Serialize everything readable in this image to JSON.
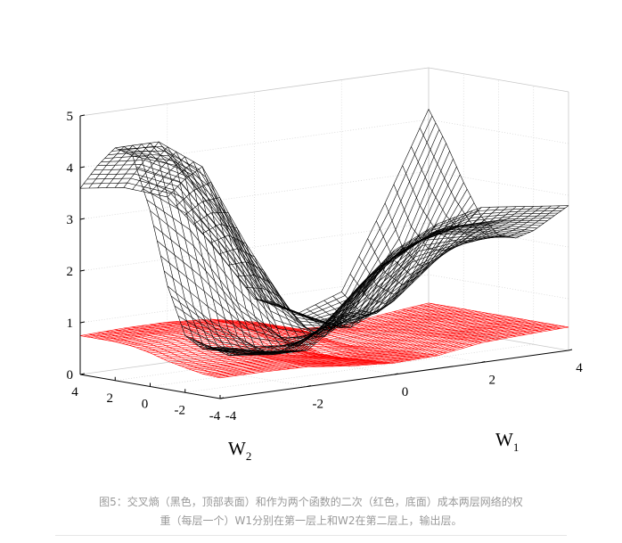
{
  "chart_data": {
    "type": "surface",
    "title": "",
    "xlabel": "W",
    "xlabel_sub": "1",
    "ylabel": "W",
    "ylabel_sub": "2",
    "zlabel": "",
    "xlim": [
      -4,
      4
    ],
    "ylim": [
      -4,
      4
    ],
    "zlim": [
      0,
      5
    ],
    "x_ticks": [
      "-4",
      "-2",
      "0",
      "2",
      "4"
    ],
    "y_ticks": [
      "4",
      "2",
      "0",
      "-2",
      "-4"
    ],
    "z_ticks": [
      "0",
      "1",
      "2",
      "3",
      "4",
      "5"
    ],
    "grid": true,
    "series": [
      {
        "color": "#000000",
        "style": "wireframe",
        "w1": [
          -4,
          -3,
          -2,
          -1,
          0,
          1,
          2,
          3,
          4
        ],
        "w2": [
          -4,
          -3,
          -2,
          -1,
          0,
          1,
          2,
          3,
          4
        ],
        "z": [
          [
            1.0,
            0.8,
            0.7,
            1.3,
            2.4,
            2.8,
            3.0,
            2.9,
            2.8
          ],
          [
            0.9,
            0.7,
            0.6,
            1.1,
            2.0,
            2.4,
            2.6,
            2.6,
            2.5
          ],
          [
            1.1,
            0.6,
            0.5,
            0.8,
            1.6,
            2.2,
            2.5,
            2.4,
            2.2
          ],
          [
            2.0,
            1.2,
            0.6,
            0.5,
            1.0,
            1.8,
            2.3,
            2.2,
            2.0
          ],
          [
            3.4,
            2.6,
            1.4,
            0.6,
            0.5,
            1.0,
            1.7,
            1.9,
            2.0
          ],
          [
            4.4,
            4.1,
            3.0,
            1.4,
            0.6,
            0.5,
            0.9,
            1.6,
            2.3
          ],
          [
            4.5,
            4.5,
            3.9,
            2.3,
            0.9,
            0.5,
            0.6,
            1.4,
            2.9
          ],
          [
            4.1,
            4.0,
            3.6,
            2.4,
            1.0,
            0.5,
            0.6,
            1.7,
            3.6
          ],
          [
            3.6,
            3.5,
            3.2,
            2.2,
            1.0,
            0.6,
            0.9,
            2.5,
            4.2
          ]
        ]
      },
      {
        "color": "#ff0000",
        "style": "wireframe",
        "w1": [
          -4,
          -3,
          -2,
          -1,
          0,
          1,
          2,
          3,
          4
        ],
        "w2": [
          -4,
          -3,
          -2,
          -1,
          0,
          1,
          2,
          3,
          4
        ],
        "z": [
          [
            0.4,
            0.4,
            0.38,
            0.28,
            0.22,
            0.25,
            0.38,
            0.42,
            0.45
          ],
          [
            0.42,
            0.42,
            0.4,
            0.28,
            0.2,
            0.24,
            0.38,
            0.42,
            0.45
          ],
          [
            0.48,
            0.45,
            0.42,
            0.3,
            0.18,
            0.22,
            0.36,
            0.42,
            0.45
          ],
          [
            0.55,
            0.52,
            0.45,
            0.32,
            0.15,
            0.2,
            0.34,
            0.4,
            0.45
          ],
          [
            0.65,
            0.62,
            0.55,
            0.4,
            0.15,
            0.18,
            0.32,
            0.4,
            0.45
          ],
          [
            0.72,
            0.72,
            0.68,
            0.55,
            0.25,
            0.15,
            0.3,
            0.4,
            0.45
          ],
          [
            0.75,
            0.78,
            0.75,
            0.65,
            0.4,
            0.18,
            0.28,
            0.38,
            0.45
          ],
          [
            0.75,
            0.78,
            0.78,
            0.7,
            0.5,
            0.25,
            0.25,
            0.36,
            0.45
          ],
          [
            0.75,
            0.78,
            0.78,
            0.72,
            0.55,
            0.3,
            0.25,
            0.36,
            0.45
          ]
        ]
      }
    ]
  },
  "caption": {
    "line1": "图5：交叉熵（黑色，顶部表面）和作为两个函数的二次（红色，底面）成本两层网络的权",
    "line2": "重（每层一个）W1分别在第一层上和W2在第二层上，输出层。"
  }
}
